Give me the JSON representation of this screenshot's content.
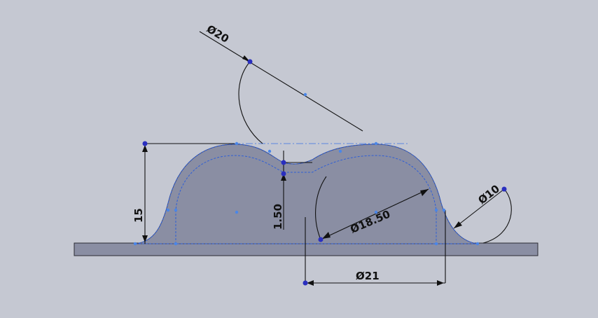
{
  "colors": {
    "background": "#c5c8d2",
    "part_fill": "#8a8ea3",
    "base_fill": "#8a8ea3",
    "sketch_blue": "#2f5fd6",
    "dimension": "#111111",
    "point": "#2a2fbf"
  },
  "dimensions": {
    "d_top_arc": "Ø20",
    "d_right_arc": "Ø18.50",
    "d_small_arc": "Ø10",
    "d_bottom": "Ø21",
    "height": "15",
    "thickness": "1.50"
  }
}
